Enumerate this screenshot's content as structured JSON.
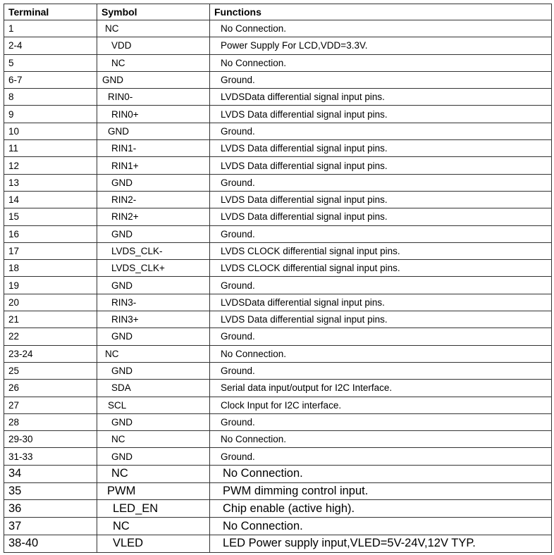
{
  "table": {
    "headers": [
      "Terminal",
      "Symbol",
      "Functions"
    ],
    "rows": [
      {
        "terminal": "1",
        "symbol": "NC",
        "function": "No Connection."
      },
      {
        "terminal": "2-4",
        "symbol": "VDD",
        "function": "Power Supply For LCD,VDD=3.3V."
      },
      {
        "terminal": "5",
        "symbol": "NC",
        "function": "No Connection."
      },
      {
        "terminal": "6-7",
        "symbol": "GND",
        "function": "Ground."
      },
      {
        "terminal": "8",
        "symbol": "RIN0-",
        "function": "LVDSData differential signal input pins."
      },
      {
        "terminal": "9",
        "symbol": "RIN0+",
        "function": "LVDS Data differential signal input pins."
      },
      {
        "terminal": "10",
        "symbol": "GND",
        "function": "Ground."
      },
      {
        "terminal": "11",
        "symbol": "RIN1-",
        "function": "LVDS  Data differential signal input pins."
      },
      {
        "terminal": "12",
        "symbol": "RIN1+",
        "function": "LVDS  Data differential signal input pins."
      },
      {
        "terminal": "13",
        "symbol": "GND",
        "function": "Ground."
      },
      {
        "terminal": "14",
        "symbol": "RIN2-",
        "function": "LVDS  Data differential signal input pins."
      },
      {
        "terminal": "15",
        "symbol": "RIN2+",
        "function": "LVDS  Data differential signal input pins."
      },
      {
        "terminal": "16",
        "symbol": "GND",
        "function": "Ground."
      },
      {
        "terminal": "17",
        "symbol": "LVDS_CLK-",
        "function": "LVDS CLOCK differential signal input pins."
      },
      {
        "terminal": "18",
        "symbol": "LVDS_CLK+",
        "function": "LVDS CLOCK differential signal input pins."
      },
      {
        "terminal": "19",
        "symbol": "GND",
        "function": "Ground."
      },
      {
        "terminal": "20",
        "symbol": "RIN3-",
        "function": "LVDSData differential signal input pins."
      },
      {
        "terminal": "21",
        "symbol": "RIN3+",
        "function": "LVDS Data differential signal input pins."
      },
      {
        "terminal": "22",
        "symbol": "GND",
        "function": "Ground."
      },
      {
        "terminal": "23-24",
        "symbol": "NC",
        "function": "No Connection."
      },
      {
        "terminal": "25",
        "symbol": "GND",
        "function": "Ground."
      },
      {
        "terminal": "26",
        "symbol": "SDA",
        "function": "Serial data input/output for I2C Interface."
      },
      {
        "terminal": "27",
        "symbol": "SCL",
        "function": "Clock Input for I2C interface."
      },
      {
        "terminal": "28",
        "symbol": "GND",
        "function": "Ground."
      },
      {
        "terminal": "29-30",
        "symbol": "NC",
        "function": "No Connection."
      },
      {
        "terminal": "31-33",
        "symbol": "GND",
        "function": "Ground."
      },
      {
        "terminal": "34",
        "symbol": "NC",
        "function": "No Connection."
      },
      {
        "terminal": "35",
        "symbol": "PWM",
        "function": "PWM dimming control input."
      },
      {
        "terminal": "36",
        "symbol": "LED_EN",
        "function": "Chip enable (active high)."
      },
      {
        "terminal": "37",
        "symbol": "NC",
        "function": "No Connection."
      },
      {
        "terminal": "38-40",
        "symbol": "VLED",
        "function": "LED Power supply input,VLED=5V-24V,12V TYP."
      }
    ]
  }
}
